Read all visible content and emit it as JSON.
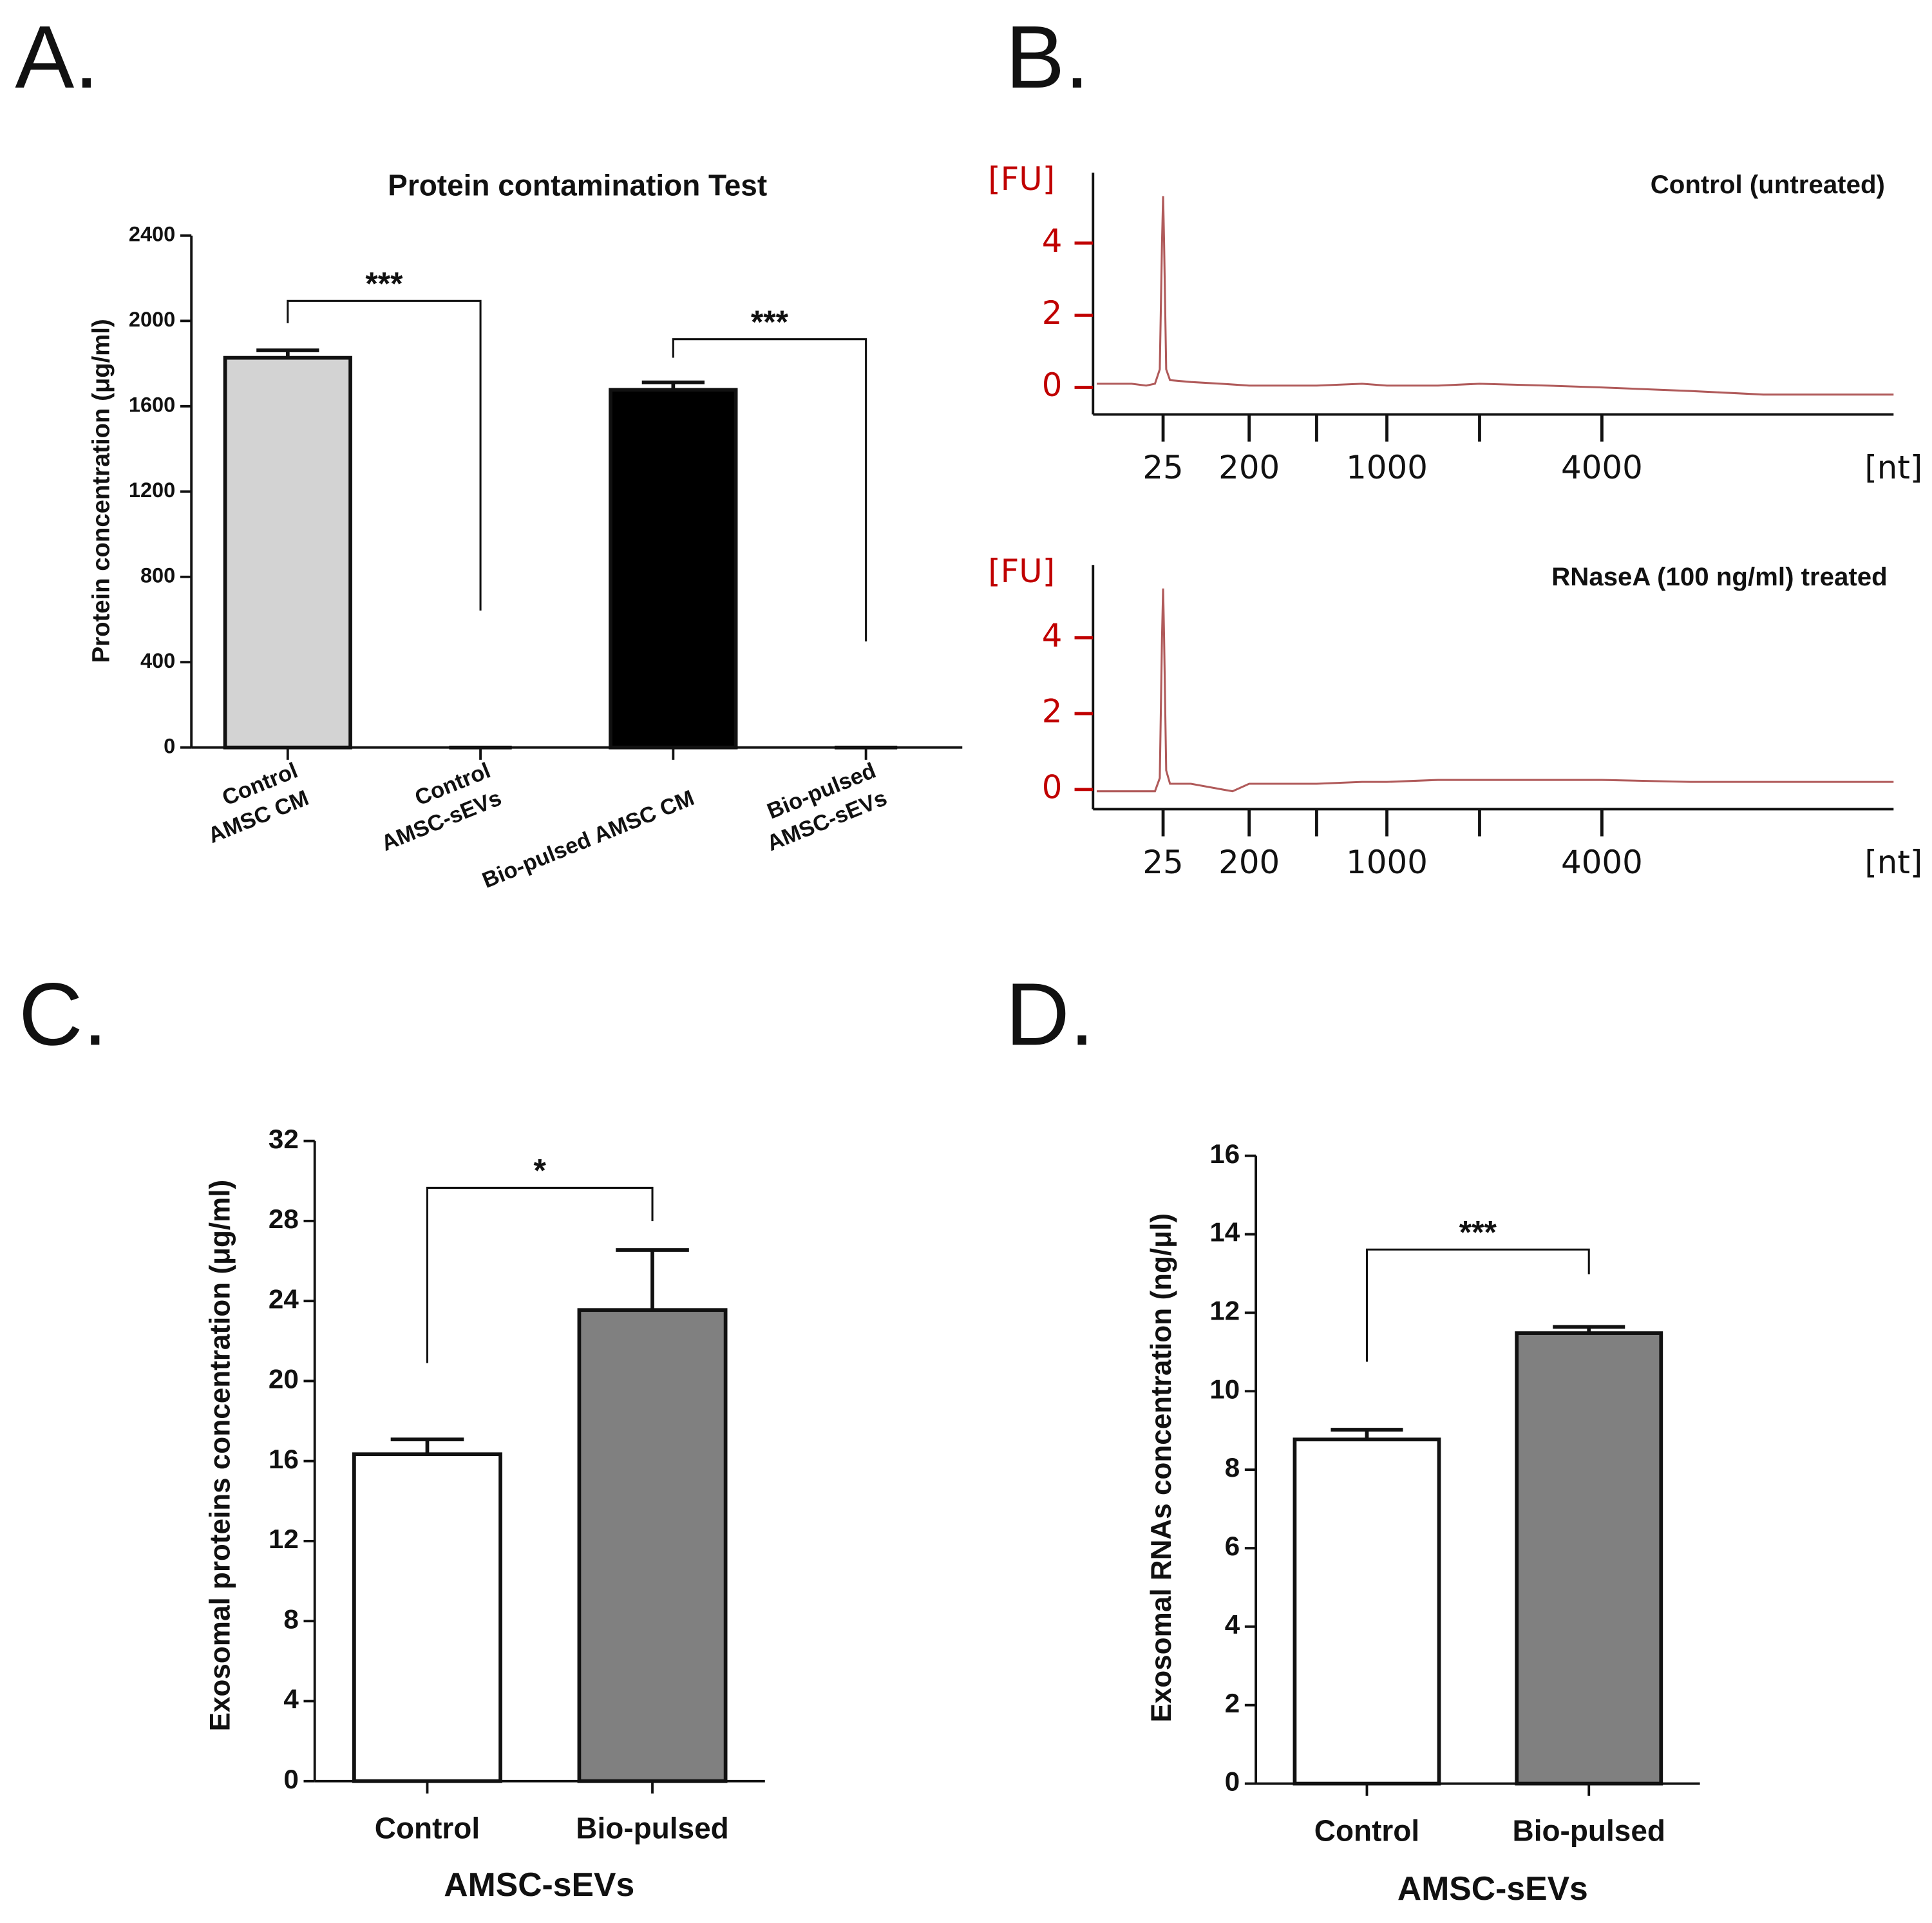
{
  "chart_data": [
    {
      "panel": "A.",
      "type": "bar",
      "title": "Protein contamination Test",
      "y_label": "Protein concentration  (μg/ml)",
      "categories": [
        [
          "Control",
          "AMSC CM"
        ],
        [
          "Control",
          "AMSC-sEVs"
        ],
        [
          "Bio-pulsed AMSC CM"
        ],
        [
          "Bio-pulsed",
          "AMSC-sEVs"
        ]
      ],
      "values": [
        1827,
        0,
        1677,
        0
      ],
      "errors": [
        35,
        0,
        35,
        0
      ],
      "colors": [
        "#d3d3d3",
        "#ffffff",
        "#000000",
        "#ffffff"
      ],
      "ylim": [
        0,
        2400
      ],
      "yticks": [
        0,
        400,
        800,
        1200,
        1600,
        2000,
        2400
      ],
      "annotations": [
        {
          "text": "***",
          "between": [
            0,
            1
          ]
        },
        {
          "text": "***",
          "between": [
            2,
            3
          ]
        }
      ]
    },
    {
      "panel": "B.",
      "type": "line",
      "title": "Control (untreated)",
      "y_label": "[FU]",
      "x_label": "[nt]",
      "xscale": "power",
      "xscale_exponent": 0.4,
      "x": [
        0,
        5,
        12,
        18,
        22,
        24,
        25,
        26,
        28,
        32,
        60,
        120,
        200,
        500,
        800,
        1000,
        1500,
        2000,
        3000,
        4000,
        6000,
        8000,
        12500
      ],
      "values": [
        0.1,
        0.1,
        0.05,
        0.1,
        0.5,
        4,
        5.3,
        4,
        0.5,
        0.2,
        0.15,
        0.1,
        0.05,
        0.05,
        0.1,
        0.05,
        0.05,
        0.1,
        0.05,
        0,
        -0.1,
        -0.2,
        -0.2
      ],
      "color": "#b05a5a",
      "axis_color": "#c00000",
      "xlim": [
        0,
        12500
      ],
      "xticks": [
        25,
        200,
        1000,
        4000
      ],
      "xminorticks": [
        500,
        2000
      ],
      "ylim": [
        -0.75,
        5.95
      ],
      "yticks": [
        0,
        2,
        4
      ]
    },
    {
      "type": "line",
      "title": "RNaseA (100 ng/ml) treated",
      "y_label": "[FU]",
      "x_label": "[nt]",
      "xscale": "power",
      "xscale_exponent": 0.4,
      "x": [
        0,
        5,
        12,
        18,
        22,
        24,
        25,
        26,
        28,
        32,
        60,
        150,
        200,
        500,
        800,
        1000,
        1500,
        2000,
        3000,
        4000,
        6000,
        8000,
        12500
      ],
      "values": [
        -0.05,
        -0.05,
        -0.05,
        -0.05,
        0.3,
        4,
        5.3,
        4,
        0.5,
        0.15,
        0.15,
        -0.05,
        0.15,
        0.15,
        0.2,
        0.2,
        0.25,
        0.25,
        0.25,
        0.25,
        0.2,
        0.2,
        0.2
      ],
      "color": "#b05a5a",
      "axis_color": "#c00000",
      "xlim": [
        0,
        12500
      ],
      "xticks": [
        25,
        200,
        1000,
        4000
      ],
      "xminorticks": [
        500,
        2000
      ],
      "ylim": [
        -0.52,
        5.92
      ],
      "yticks": [
        0,
        2,
        4
      ]
    },
    {
      "panel": "C.",
      "type": "bar",
      "y_label": "Exosomal proteins concentration  (μg/ml)",
      "x_label": "AMSC-sEVs",
      "categories": [
        [
          "Control"
        ],
        [
          "Bio-pulsed"
        ]
      ],
      "values": [
        16.34,
        23.55
      ],
      "errors": [
        0.74,
        3.0
      ],
      "colors": [
        "#ffffff",
        "#808080"
      ],
      "ylim": [
        0,
        32
      ],
      "yticks": [
        0,
        4,
        8,
        12,
        16,
        20,
        24,
        28,
        32
      ],
      "annotations": [
        {
          "text": "*",
          "between": [
            0,
            1
          ]
        }
      ]
    },
    {
      "panel": "D.",
      "type": "bar",
      "y_label": "Exosomal RNAs concentration  (ng/μl)",
      "x_label": "AMSC-sEVs",
      "categories": [
        [
          "Control"
        ],
        [
          "Bio-pulsed"
        ]
      ],
      "values": [
        8.77,
        11.48
      ],
      "errors": [
        0.25,
        0.16
      ],
      "colors": [
        "#ffffff",
        "#808080"
      ],
      "ylim": [
        0,
        16
      ],
      "yticks": [
        0,
        2,
        4,
        6,
        8,
        10,
        12,
        14,
        16
      ],
      "annotations": [
        {
          "text": "***",
          "between": [
            0,
            1
          ]
        }
      ]
    }
  ]
}
